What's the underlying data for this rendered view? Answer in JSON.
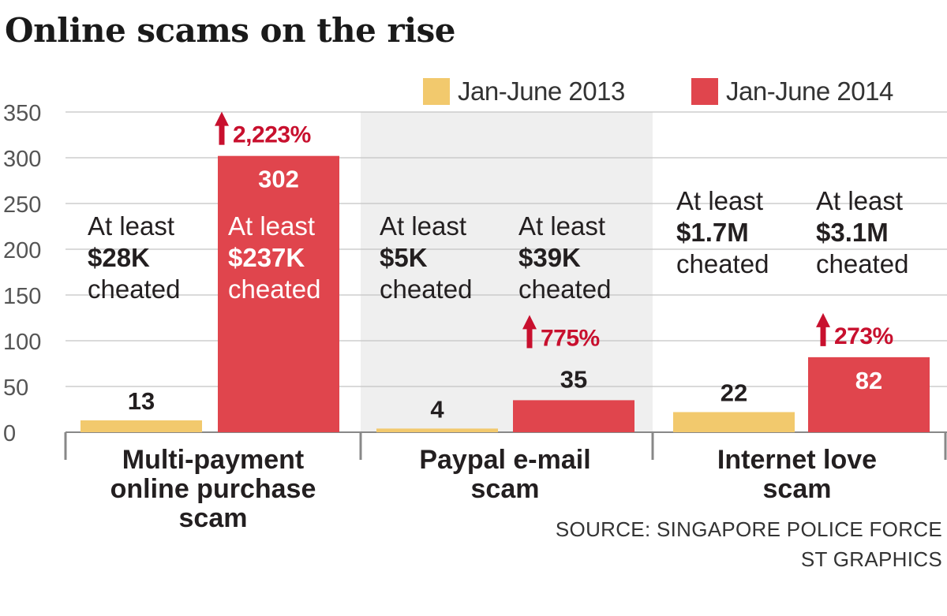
{
  "title": "Online scams on the rise",
  "source": "SOURCE: SINGAPORE POLICE FORCE",
  "credit": "ST GRAPHICS",
  "colors": {
    "y2013": "#f2c96d",
    "y2014": "#e0454d",
    "arrow": "#c8102e",
    "panel": "#efefef",
    "axis": "#888888"
  },
  "chart_data": {
    "type": "bar",
    "ylim": [
      0,
      350
    ],
    "yticks": [
      "0",
      "50",
      "100",
      "150",
      "200",
      "250",
      "300",
      "350"
    ],
    "categories": [
      "Multi-payment online purchase scam",
      "Paypal e-mail scam",
      "Internet love scam"
    ],
    "category_lines": [
      [
        "Multi-payment",
        "online purchase",
        "scam"
      ],
      [
        "Paypal e-mail",
        "scam"
      ],
      [
        "Internet love",
        "scam"
      ]
    ],
    "series": [
      {
        "name": "Jan-June 2013",
        "values": [
          13,
          4,
          22
        ],
        "labels": [
          "13",
          "4",
          "22"
        ]
      },
      {
        "name": "Jan-June 2014",
        "values": [
          302,
          35,
          82
        ],
        "labels": [
          "302",
          "35",
          "82"
        ]
      }
    ],
    "increase_labels": [
      "2,223%",
      "775%",
      "273%"
    ],
    "annotations": [
      [
        [
          "At least",
          "$28K",
          "cheated"
        ],
        [
          "At least",
          "$237K",
          "cheated"
        ]
      ],
      [
        [
          "At least",
          "$5K",
          "cheated"
        ],
        [
          "At least",
          "$39K",
          "cheated"
        ]
      ],
      [
        [
          "At least",
          "$1.7M",
          "cheated"
        ],
        [
          "At least",
          "$3.1M",
          "cheated"
        ]
      ]
    ]
  }
}
